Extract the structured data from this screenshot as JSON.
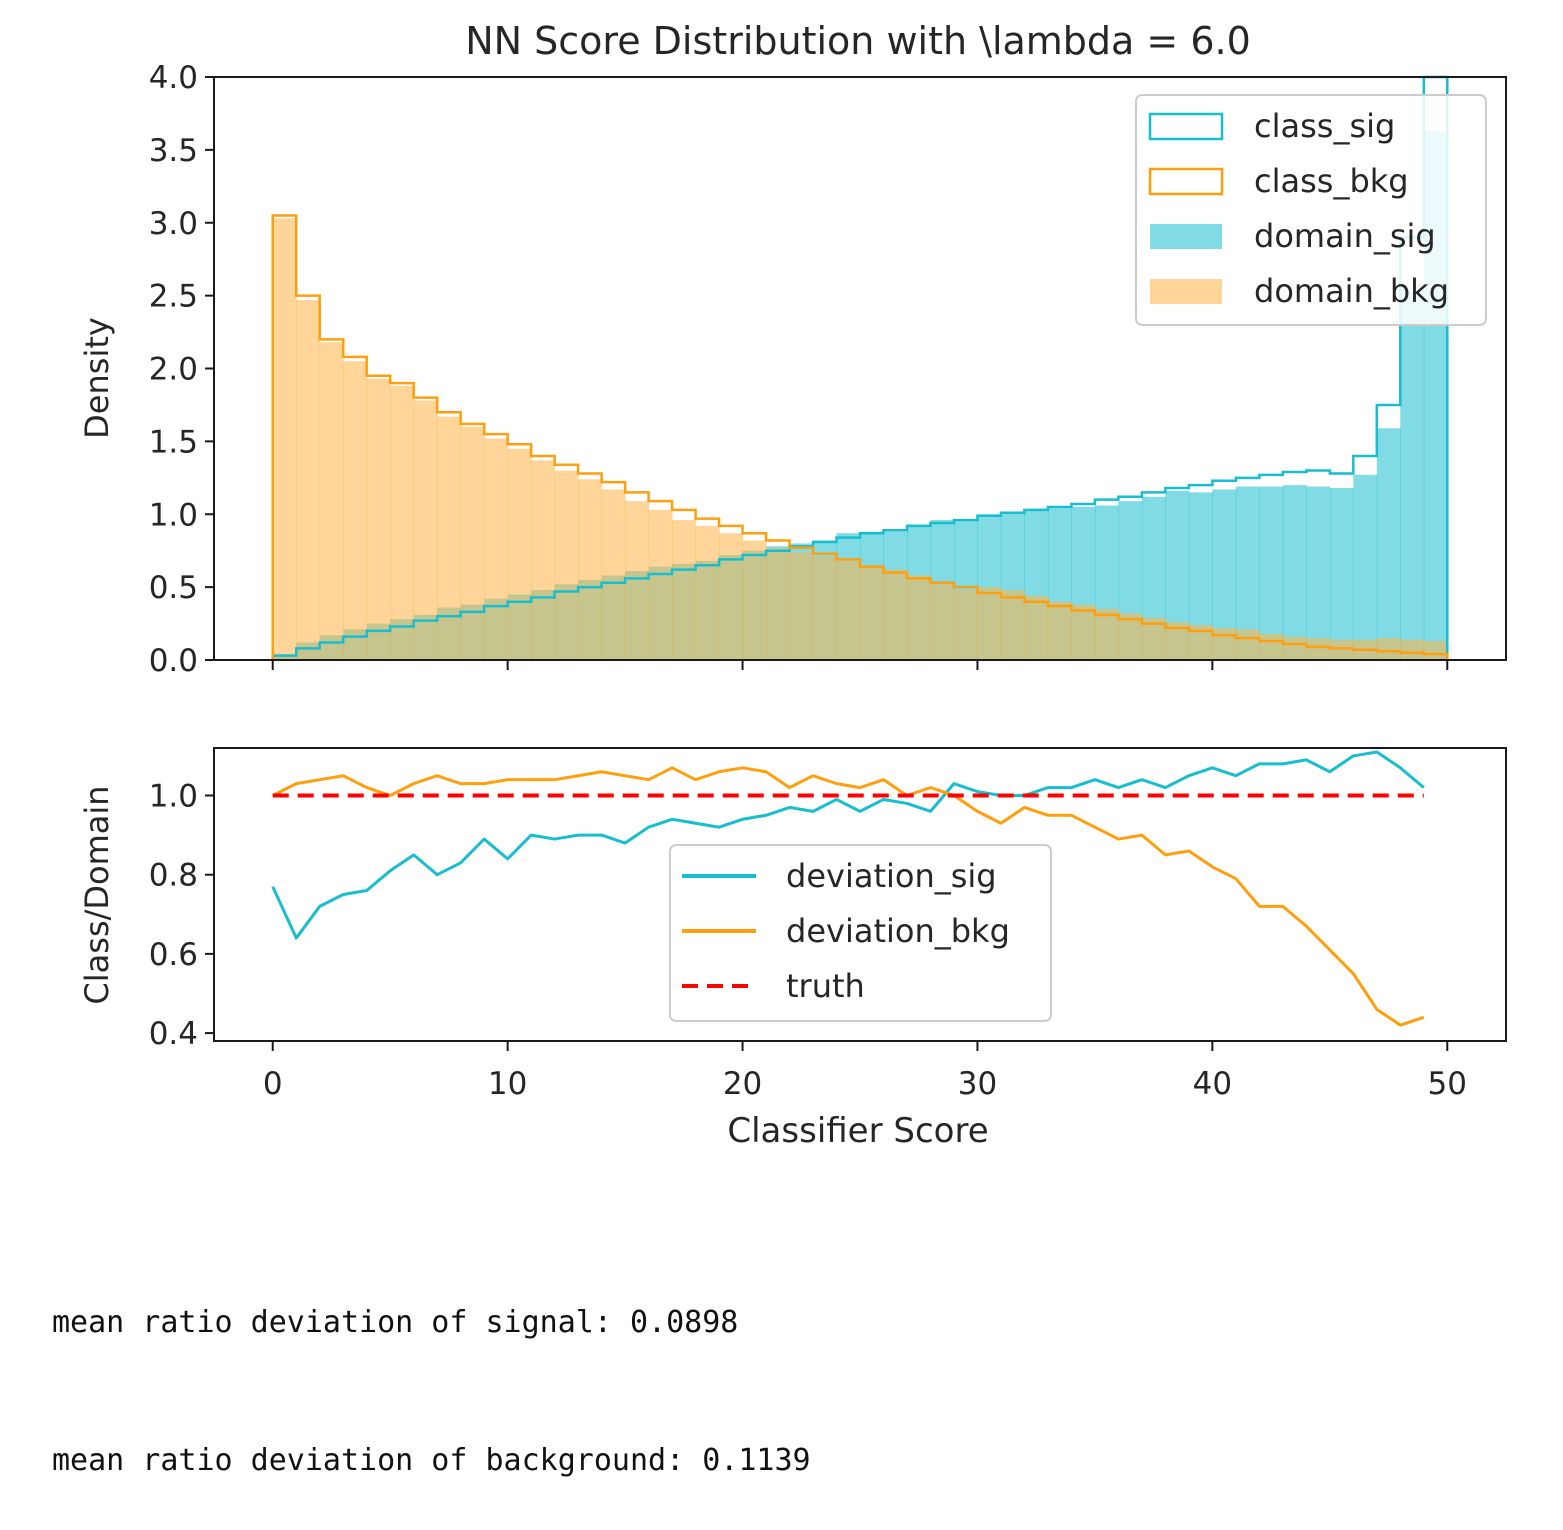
{
  "chart_data": [
    {
      "type": "histogram",
      "title": "NN Score  Distribution with \\lambda = 6.0",
      "xlabel": "",
      "ylabel": "Density",
      "xlim": [
        -2.5,
        52.5
      ],
      "ylim": [
        0,
        4.0
      ],
      "yticks": [
        0.0,
        0.5,
        1.0,
        1.5,
        2.0,
        2.5,
        3.0,
        3.5,
        4.0
      ],
      "ytick_labels": [
        "0.0",
        "0.5",
        "1.0",
        "1.5",
        "2.0",
        "2.5",
        "3.0",
        "3.5",
        "4.0"
      ],
      "xticks": [
        0,
        10,
        20,
        30,
        40,
        50
      ],
      "bin_edges_start": 0,
      "bin_width": 1,
      "legend_position": "top-right",
      "series": [
        {
          "name": "class_sig",
          "style": "step",
          "color": "#17becf",
          "values": [
            0.03,
            0.08,
            0.12,
            0.16,
            0.2,
            0.23,
            0.27,
            0.3,
            0.33,
            0.37,
            0.4,
            0.43,
            0.47,
            0.5,
            0.53,
            0.56,
            0.59,
            0.62,
            0.65,
            0.69,
            0.72,
            0.75,
            0.78,
            0.81,
            0.84,
            0.87,
            0.89,
            0.92,
            0.94,
            0.96,
            0.99,
            1.01,
            1.03,
            1.05,
            1.07,
            1.1,
            1.12,
            1.15,
            1.18,
            1.2,
            1.23,
            1.25,
            1.27,
            1.29,
            1.3,
            1.28,
            1.4,
            1.75,
            2.9,
            4.0
          ]
        },
        {
          "name": "class_bkg",
          "style": "step",
          "color": "#ff9f0e",
          "values": [
            3.05,
            2.5,
            2.2,
            2.08,
            1.95,
            1.9,
            1.8,
            1.7,
            1.62,
            1.55,
            1.48,
            1.4,
            1.34,
            1.28,
            1.22,
            1.15,
            1.09,
            1.03,
            0.97,
            0.92,
            0.87,
            0.82,
            0.77,
            0.73,
            0.69,
            0.64,
            0.6,
            0.56,
            0.53,
            0.5,
            0.46,
            0.43,
            0.4,
            0.37,
            0.34,
            0.31,
            0.28,
            0.25,
            0.22,
            0.2,
            0.17,
            0.15,
            0.13,
            0.11,
            0.09,
            0.08,
            0.07,
            0.06,
            0.05,
            0.04
          ]
        },
        {
          "name": "domain_sig",
          "style": "filled",
          "color": "#17becf",
          "values": [
            0.04,
            0.12,
            0.17,
            0.21,
            0.25,
            0.28,
            0.31,
            0.36,
            0.38,
            0.42,
            0.45,
            0.48,
            0.52,
            0.55,
            0.58,
            0.61,
            0.64,
            0.66,
            0.68,
            0.72,
            0.75,
            0.78,
            0.8,
            0.82,
            0.87,
            0.88,
            0.88,
            0.93,
            0.96,
            0.95,
            1.0,
            1.01,
            1.03,
            1.04,
            1.05,
            1.06,
            1.09,
            1.12,
            1.16,
            1.15,
            1.17,
            1.19,
            1.19,
            1.2,
            1.19,
            1.18,
            1.27,
            1.59,
            2.53,
            3.63
          ]
        },
        {
          "name": "domain_bkg",
          "style": "filled",
          "color": "#ffb347",
          "values": [
            3.03,
            2.47,
            2.18,
            2.05,
            1.93,
            1.88,
            1.78,
            1.67,
            1.6,
            1.52,
            1.45,
            1.37,
            1.3,
            1.24,
            1.17,
            1.09,
            1.03,
            0.96,
            0.92,
            0.87,
            0.82,
            0.77,
            0.74,
            0.71,
            0.68,
            0.65,
            0.62,
            0.58,
            0.53,
            0.48,
            0.5,
            0.48,
            0.44,
            0.4,
            0.38,
            0.35,
            0.32,
            0.29,
            0.26,
            0.24,
            0.22,
            0.21,
            0.18,
            0.16,
            0.15,
            0.14,
            0.14,
            0.15,
            0.14,
            0.13
          ]
        }
      ]
    },
    {
      "type": "line",
      "title": "",
      "xlabel": "Classifier Score",
      "ylabel": "Class/Domain",
      "xlim": [
        -2.5,
        52.5
      ],
      "ylim": [
        0.38,
        1.12
      ],
      "yticks": [
        0.4,
        0.6,
        0.8,
        1.0
      ],
      "ytick_labels": [
        "0.4",
        "0.6",
        "0.8",
        "1.0"
      ],
      "xticks": [
        0,
        10,
        20,
        30,
        40,
        50
      ],
      "xtick_labels": [
        "0",
        "10",
        "20",
        "30",
        "40",
        "50"
      ],
      "legend_position": "center",
      "x": [
        0,
        1,
        2,
        3,
        4,
        5,
        6,
        7,
        8,
        9,
        10,
        11,
        12,
        13,
        14,
        15,
        16,
        17,
        18,
        19,
        20,
        21,
        22,
        23,
        24,
        25,
        26,
        27,
        28,
        29,
        30,
        31,
        32,
        33,
        34,
        35,
        36,
        37,
        38,
        39,
        40,
        41,
        42,
        43,
        44,
        45,
        46,
        47,
        48,
        49
      ],
      "series": [
        {
          "name": "deviation_sig",
          "style": "solid",
          "color": "#17becf",
          "values": [
            0.77,
            0.64,
            0.72,
            0.75,
            0.76,
            0.81,
            0.85,
            0.8,
            0.83,
            0.89,
            0.84,
            0.9,
            0.89,
            0.9,
            0.9,
            0.88,
            0.92,
            0.94,
            0.93,
            0.92,
            0.94,
            0.95,
            0.97,
            0.96,
            0.99,
            0.96,
            0.99,
            0.98,
            0.96,
            1.03,
            1.01,
            1.0,
            1.0,
            1.02,
            1.02,
            1.04,
            1.02,
            1.04,
            1.02,
            1.05,
            1.07,
            1.05,
            1.08,
            1.08,
            1.09,
            1.06,
            1.1,
            1.11,
            1.07,
            1.02
          ]
        },
        {
          "name": "deviation_bkg",
          "style": "solid",
          "color": "#ff9f0e",
          "values": [
            1.0,
            1.03,
            1.04,
            1.05,
            1.02,
            1.0,
            1.03,
            1.05,
            1.03,
            1.03,
            1.04,
            1.04,
            1.04,
            1.05,
            1.06,
            1.05,
            1.04,
            1.07,
            1.04,
            1.06,
            1.07,
            1.06,
            1.02,
            1.05,
            1.03,
            1.02,
            1.04,
            1.0,
            1.02,
            1.0,
            0.96,
            0.93,
            0.97,
            0.95,
            0.95,
            0.92,
            0.89,
            0.9,
            0.85,
            0.86,
            0.82,
            0.79,
            0.72,
            0.72,
            0.67,
            0.61,
            0.55,
            0.46,
            0.42,
            0.44
          ]
        },
        {
          "name": "truth",
          "style": "dashed",
          "color": "#ff0000",
          "values": [
            1.0,
            1.0,
            1.0,
            1.0,
            1.0,
            1.0,
            1.0,
            1.0,
            1.0,
            1.0,
            1.0,
            1.0,
            1.0,
            1.0,
            1.0,
            1.0,
            1.0,
            1.0,
            1.0,
            1.0,
            1.0,
            1.0,
            1.0,
            1.0,
            1.0,
            1.0,
            1.0,
            1.0,
            1.0,
            1.0,
            1.0,
            1.0,
            1.0,
            1.0,
            1.0,
            1.0,
            1.0,
            1.0,
            1.0,
            1.0,
            1.0,
            1.0,
            1.0,
            1.0,
            1.0,
            1.0,
            1.0,
            1.0,
            1.0,
            1.0
          ]
        }
      ]
    }
  ],
  "console": {
    "line1": "mean ratio deviation of signal: 0.0898",
    "line2": "mean ratio deviation of background: 0.1139"
  }
}
